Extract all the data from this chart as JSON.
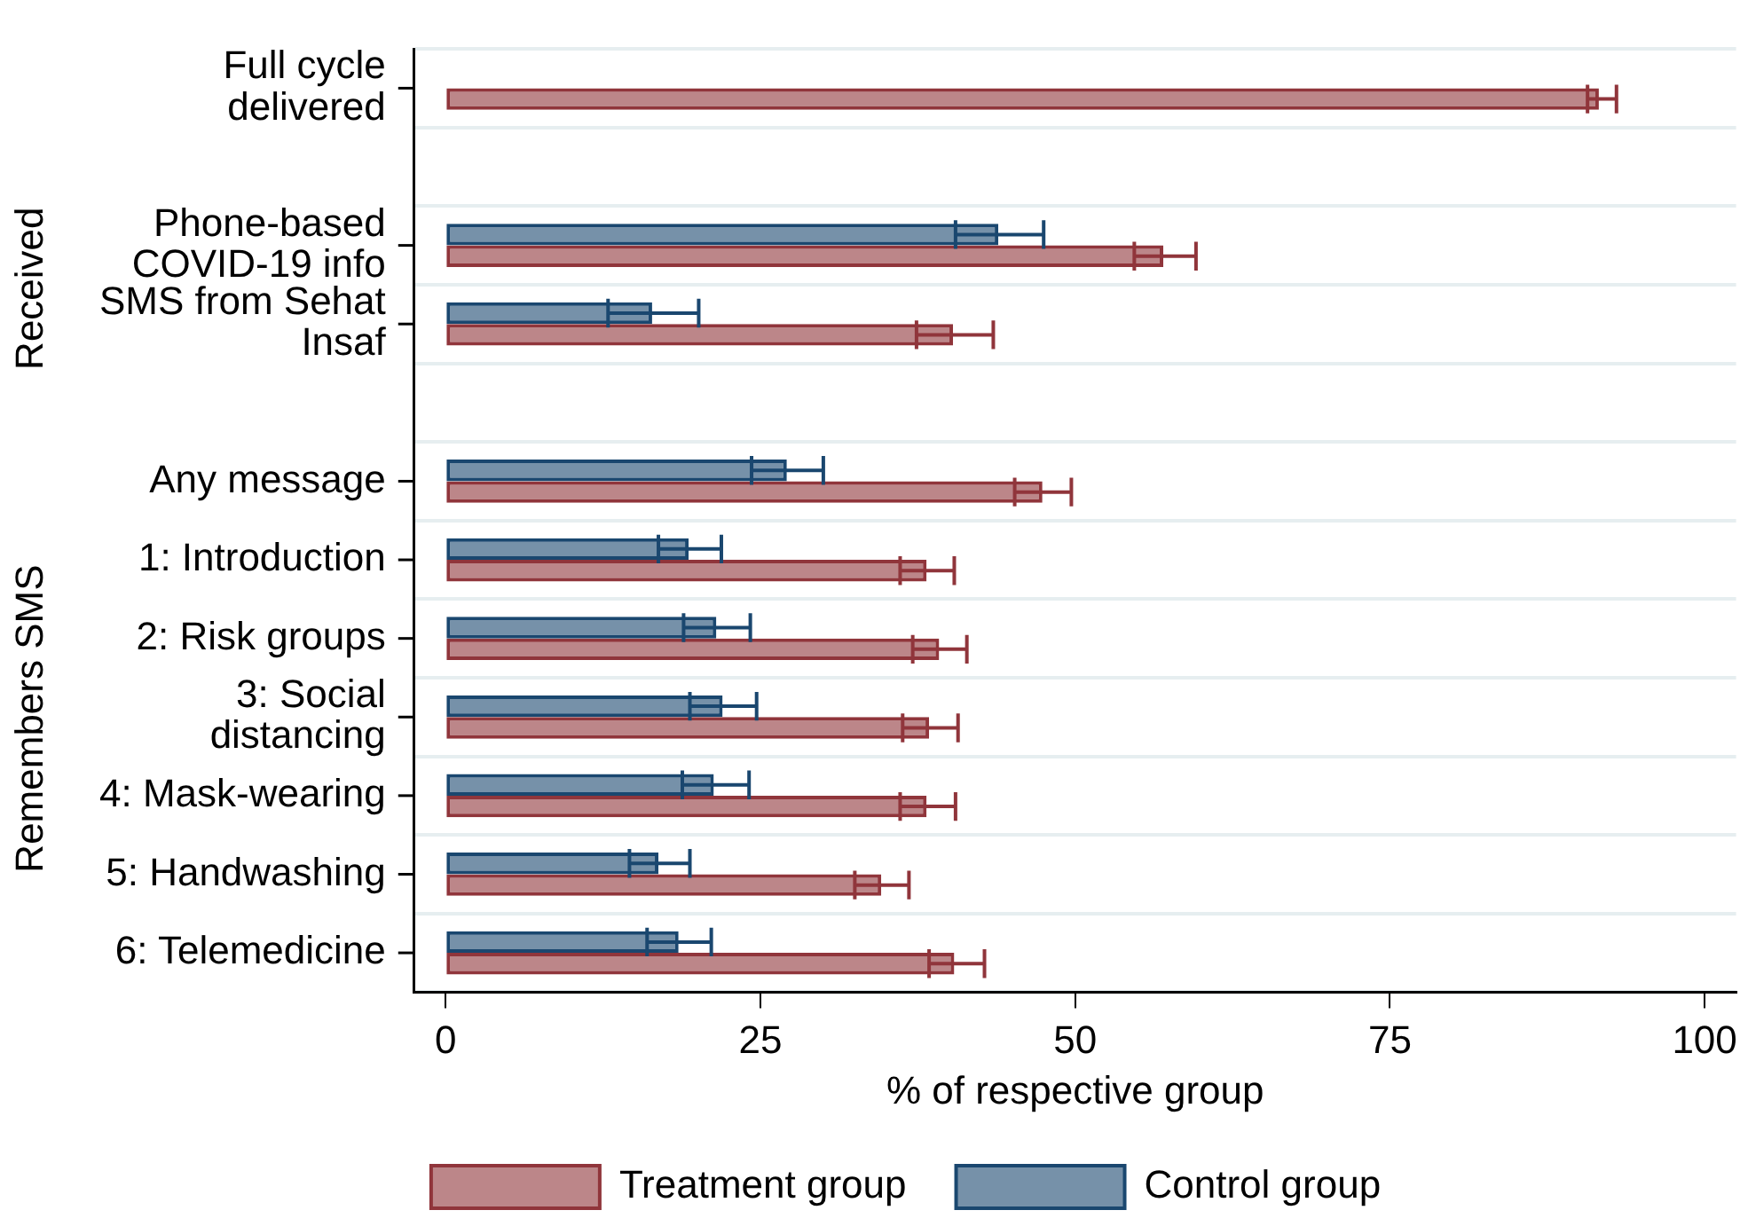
{
  "chart_data": {
    "type": "bar",
    "orientation": "horizontal",
    "xlabel": "% of respective group",
    "categories": [
      "Full cycle\ndelivered",
      null,
      "Phone-based\nCOVID-19 info",
      "SMS from Sehat\nInsaf",
      null,
      "Any message",
      "1: Introduction",
      "2: Risk groups",
      "3: Social\ndistancing",
      "4: Mask-wearing",
      "5: Handwashing",
      "6: Telemedicine"
    ],
    "series": [
      {
        "name": "Treatment group",
        "color": "#90353b",
        "values": [
          91.6,
          null,
          57.0,
          40.3,
          null,
          47.4,
          38.2,
          39.2,
          38.4,
          38.2,
          34.6,
          40.4
        ],
        "errors": [
          [
            90.7,
            93.0
          ],
          null,
          [
            54.7,
            59.6
          ],
          [
            37.4,
            43.5
          ],
          null,
          [
            45.2,
            49.7
          ],
          [
            36.1,
            40.4
          ],
          [
            37.1,
            41.4
          ],
          [
            36.3,
            40.7
          ],
          [
            36.1,
            40.5
          ],
          [
            32.5,
            36.8
          ],
          [
            38.4,
            42.8
          ]
        ]
      },
      {
        "name": "Control group",
        "color": "#1a476f",
        "values": [
          null,
          null,
          43.9,
          16.4,
          null,
          27.1,
          19.3,
          21.5,
          22.0,
          21.3,
          16.9,
          18.5
        ],
        "errors": [
          null,
          null,
          [
            40.5,
            47.5
          ],
          [
            12.9,
            20.1
          ],
          null,
          [
            24.3,
            30.0
          ],
          [
            16.9,
            21.9
          ],
          [
            18.9,
            24.2
          ],
          [
            19.4,
            24.7
          ],
          [
            18.8,
            24.1
          ],
          [
            14.6,
            19.4
          ],
          [
            16.0,
            21.1
          ]
        ]
      }
    ],
    "xlim": [
      -2.5,
      102.5
    ],
    "xticks": [
      0,
      25,
      50,
      75,
      100
    ],
    "grid": "y",
    "legend": "bottom",
    "annotations": [
      "Received",
      "Remembers SMS"
    ]
  }
}
